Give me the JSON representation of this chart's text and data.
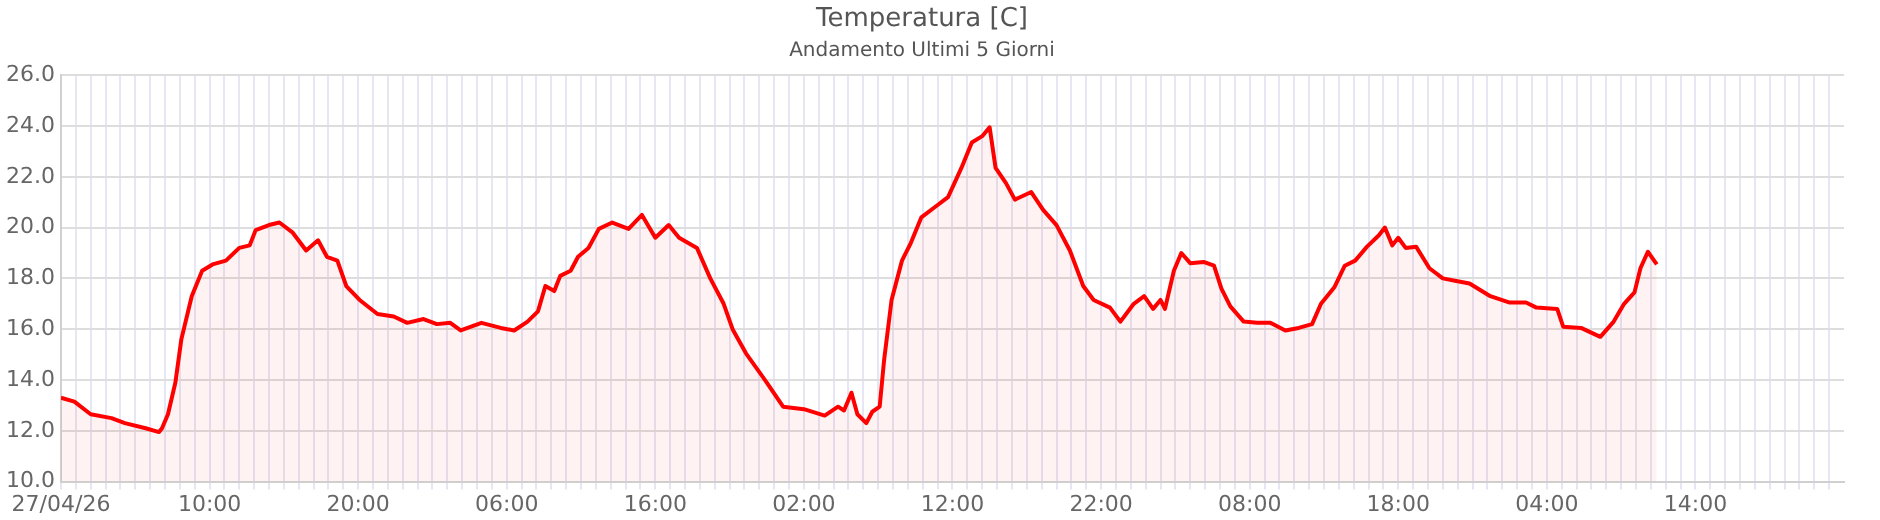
{
  "chart_data": {
    "type": "area",
    "title": "Temperatura [C]",
    "subtitle": "Andamento Ultimi 5 Giorni",
    "xlim": [
      "--04-27T00:00",
      "--05-02T00:00"
    ],
    "ylim": [
      10,
      26
    ],
    "yticks": [
      {
        "value": 10,
        "label": "10.0"
      },
      {
        "value": 12,
        "label": "12.0"
      },
      {
        "value": 14,
        "label": "14.0"
      },
      {
        "value": 16,
        "label": "16.0"
      },
      {
        "value": 18,
        "label": "18.0"
      },
      {
        "value": 20,
        "label": "20.0"
      },
      {
        "value": 22,
        "label": "22.0"
      },
      {
        "value": 24,
        "label": "24.0"
      },
      {
        "value": 26,
        "label": "26.0"
      }
    ],
    "xticks": [
      {
        "value": "--04-27T00:00",
        "label": "27/04/26"
      },
      {
        "value": "--04-27T01:00",
        "label": null
      },
      {
        "value": "--04-27T02:00",
        "label": null
      },
      {
        "value": "--04-27T03:00",
        "label": null
      },
      {
        "value": "--04-27T04:00",
        "label": null
      },
      {
        "value": "--04-27T05:00",
        "label": null
      },
      {
        "value": "--04-27T06:00",
        "label": null
      },
      {
        "value": "--04-27T07:00",
        "label": null
      },
      {
        "value": "--04-27T08:00",
        "label": null
      },
      {
        "value": "--04-27T09:00",
        "label": null
      },
      {
        "value": "--04-27T10:00",
        "label": "10:00"
      },
      {
        "value": "--04-27T11:00",
        "label": null
      },
      {
        "value": "--04-27T12:00",
        "label": null
      },
      {
        "value": "--04-27T13:00",
        "label": null
      },
      {
        "value": "--04-27T14:00",
        "label": null
      },
      {
        "value": "--04-27T15:00",
        "label": null
      },
      {
        "value": "--04-27T16:00",
        "label": null
      },
      {
        "value": "--04-27T17:00",
        "label": null
      },
      {
        "value": "--04-27T18:00",
        "label": null
      },
      {
        "value": "--04-27T19:00",
        "label": null
      },
      {
        "value": "--04-27T20:00",
        "label": "20:00"
      },
      {
        "value": "--04-27T21:00",
        "label": null
      },
      {
        "value": "--04-27T22:00",
        "label": null
      },
      {
        "value": "--04-27T23:00",
        "label": null
      },
      {
        "value": "--04-28T00:00",
        "label": null
      },
      {
        "value": "--04-28T01:00",
        "label": null
      },
      {
        "value": "--04-28T02:00",
        "label": null
      },
      {
        "value": "--04-28T03:00",
        "label": null
      },
      {
        "value": "--04-28T04:00",
        "label": null
      },
      {
        "value": "--04-28T05:00",
        "label": null
      },
      {
        "value": "--04-28T06:00",
        "label": "06:00"
      },
      {
        "value": "--04-28T07:00",
        "label": null
      },
      {
        "value": "--04-28T08:00",
        "label": null
      },
      {
        "value": "--04-28T09:00",
        "label": null
      },
      {
        "value": "--04-28T10:00",
        "label": null
      },
      {
        "value": "--04-28T11:00",
        "label": null
      },
      {
        "value": "--04-28T12:00",
        "label": null
      },
      {
        "value": "--04-28T13:00",
        "label": null
      },
      {
        "value": "--04-28T14:00",
        "label": null
      },
      {
        "value": "--04-28T15:00",
        "label": null
      },
      {
        "value": "--04-28T16:00",
        "label": "16:00"
      },
      {
        "value": "--04-28T17:00",
        "label": null
      },
      {
        "value": "--04-28T18:00",
        "label": null
      },
      {
        "value": "--04-28T19:00",
        "label": null
      },
      {
        "value": "--04-28T20:00",
        "label": null
      },
      {
        "value": "--04-28T21:00",
        "label": null
      },
      {
        "value": "--04-28T22:00",
        "label": null
      },
      {
        "value": "--04-28T23:00",
        "label": null
      },
      {
        "value": "--04-29T00:00",
        "label": null
      },
      {
        "value": "--04-29T01:00",
        "label": null
      },
      {
        "value": "--04-29T02:00",
        "label": "02:00"
      },
      {
        "value": "--04-29T03:00",
        "label": null
      },
      {
        "value": "--04-29T04:00",
        "label": null
      },
      {
        "value": "--04-29T05:00",
        "label": null
      },
      {
        "value": "--04-29T06:00",
        "label": null
      },
      {
        "value": "--04-29T07:00",
        "label": null
      },
      {
        "value": "--04-29T08:00",
        "label": null
      },
      {
        "value": "--04-29T09:00",
        "label": null
      },
      {
        "value": "--04-29T10:00",
        "label": null
      },
      {
        "value": "--04-29T11:00",
        "label": null
      },
      {
        "value": "--04-29T12:00",
        "label": "12:00"
      },
      {
        "value": "--04-29T13:00",
        "label": null
      },
      {
        "value": "--04-29T14:00",
        "label": null
      },
      {
        "value": "--04-29T15:00",
        "label": null
      },
      {
        "value": "--04-29T16:00",
        "label": null
      },
      {
        "value": "--04-29T17:00",
        "label": null
      },
      {
        "value": "--04-29T18:00",
        "label": null
      },
      {
        "value": "--04-29T19:00",
        "label": null
      },
      {
        "value": "--04-29T20:00",
        "label": null
      },
      {
        "value": "--04-29T21:00",
        "label": null
      },
      {
        "value": "--04-29T22:00",
        "label": "22:00"
      },
      {
        "value": "--04-29T23:00",
        "label": null
      },
      {
        "value": "--04-30T00:00",
        "label": null
      },
      {
        "value": "--04-30T01:00",
        "label": null
      },
      {
        "value": "--04-30T02:00",
        "label": null
      },
      {
        "value": "--04-30T03:00",
        "label": null
      },
      {
        "value": "--04-30T04:00",
        "label": null
      },
      {
        "value": "--04-30T05:00",
        "label": null
      },
      {
        "value": "--04-30T06:00",
        "label": null
      },
      {
        "value": "--04-30T07:00",
        "label": null
      },
      {
        "value": "--04-30T08:00",
        "label": "08:00"
      },
      {
        "value": "--04-30T09:00",
        "label": null
      },
      {
        "value": "--04-30T10:00",
        "label": null
      },
      {
        "value": "--04-30T11:00",
        "label": null
      },
      {
        "value": "--04-30T12:00",
        "label": null
      },
      {
        "value": "--04-30T13:00",
        "label": null
      },
      {
        "value": "--04-30T14:00",
        "label": null
      },
      {
        "value": "--04-30T15:00",
        "label": null
      },
      {
        "value": "--04-30T16:00",
        "label": null
      },
      {
        "value": "--04-30T17:00",
        "label": null
      },
      {
        "value": "--04-30T18:00",
        "label": "18:00"
      },
      {
        "value": "--04-30T19:00",
        "label": null
      },
      {
        "value": "--04-30T20:00",
        "label": null
      },
      {
        "value": "--04-30T21:00",
        "label": null
      },
      {
        "value": "--04-30T22:00",
        "label": null
      },
      {
        "value": "--04-30T23:00",
        "label": null
      },
      {
        "value": "--05-01T00:00",
        "label": null
      },
      {
        "value": "--05-01T01:00",
        "label": null
      },
      {
        "value": "--05-01T02:00",
        "label": null
      },
      {
        "value": "--05-01T03:00",
        "label": null
      },
      {
        "value": "--05-01T04:00",
        "label": "04:00"
      },
      {
        "value": "--05-01T05:00",
        "label": null
      },
      {
        "value": "--05-01T06:00",
        "label": null
      },
      {
        "value": "--05-01T07:00",
        "label": null
      },
      {
        "value": "--05-01T08:00",
        "label": null
      },
      {
        "value": "--05-01T09:00",
        "label": null
      },
      {
        "value": "--05-01T10:00",
        "label": null
      },
      {
        "value": "--05-01T11:00",
        "label": null
      },
      {
        "value": "--05-01T12:00",
        "label": null
      },
      {
        "value": "--05-01T13:00",
        "label": null
      },
      {
        "value": "--05-01T14:00",
        "label": "14:00"
      },
      {
        "value": "--05-01T15:00",
        "label": null
      },
      {
        "value": "--05-01T16:00",
        "label": null
      },
      {
        "value": "--05-01T17:00",
        "label": null
      },
      {
        "value": "--05-01T18:00",
        "label": null
      },
      {
        "value": "--05-01T19:00",
        "label": null
      },
      {
        "value": "--05-01T20:00",
        "label": null
      },
      {
        "value": "--05-01T21:00",
        "label": null
      },
      {
        "value": "--05-01T22:00",
        "label": null
      },
      {
        "value": "--05-01T23:00",
        "label": null
      }
    ],
    "grid": true,
    "x": [
      "--04-27T00:00",
      "--04-27T00:54",
      "--04-27T02:00",
      "--04-27T03:24",
      "--04-27T04:18",
      "--04-27T05:42",
      "--04-27T06:36",
      "--04-27T06:48",
      "--04-27T07:12",
      "--04-27T07:42",
      "--04-27T08:06",
      "--04-27T08:48",
      "--04-27T09:30",
      "--04-27T10:12",
      "--04-27T11:06",
      "--04-27T12:00",
      "--04-27T12:42",
      "--04-27T13:06",
      "--04-27T14:00",
      "--04-27T14:42",
      "--04-27T15:36",
      "--04-27T16:30",
      "--04-27T17:18",
      "--04-27T17:54",
      "--04-27T18:36",
      "--04-27T19:12",
      "--04-27T20:06",
      "--04-27T21:18",
      "--04-27T22:24",
      "--04-27T23:18",
      "--04-28T00:24",
      "--04-28T01:18",
      "--04-28T02:12",
      "--04-28T02:54",
      "--04-28T04:18",
      "--04-28T05:36",
      "--04-28T06:30",
      "--04-28T07:24",
      "--04-28T08:06",
      "--04-28T08:36",
      "--04-28T09:12",
      "--04-28T09:36",
      "--04-28T10:18",
      "--04-28T10:48",
      "--04-28T11:30",
      "--04-28T12:12",
      "--04-28T13:06",
      "--04-28T14:12",
      "--04-28T15:06",
      "--04-28T16:00",
      "--04-28T16:54",
      "--04-28T17:36",
      "--04-28T18:48",
      "--04-28T19:42",
      "--04-28T20:36",
      "--04-28T21:12",
      "--04-28T22:06",
      "--04-28T23:30",
      "--04-29T00:36",
      "--04-29T02:00",
      "--04-29T03:24",
      "--04-29T04:18",
      "--04-29T04:42",
      "--04-29T05:12",
      "--04-29T05:36",
      "--04-29T06:12",
      "--04-29T06:36",
      "--04-29T07:06",
      "--04-29T07:24",
      "--04-29T07:54",
      "--04-29T08:36",
      "--04-29T09:12",
      "--04-29T09:54",
      "--04-29T10:48",
      "--04-29T11:42",
      "--04-29T12:36",
      "--04-29T13:18",
      "--04-29T14:00",
      "--04-29T14:30",
      "--04-29T14:54",
      "--04-29T15:36",
      "--04-29T16:12",
      "--04-29T17:18",
      "--04-29T18:06",
      "--04-29T19:00",
      "--04-29T19:54",
      "--04-29T20:48",
      "--04-29T21:30",
      "--04-29T22:36",
      "--04-29T23:18",
      "--04-30T00:12",
      "--04-30T00:54",
      "--04-30T01:30",
      "--04-30T02:00",
      "--04-30T02:18",
      "--04-30T02:54",
      "--04-30T03:24",
      "--04-30T04:00",
      "--04-30T04:54",
      "--04-30T05:36",
      "--04-30T06:06",
      "--04-30T06:42",
      "--04-30T07:36",
      "--04-30T08:30",
      "--04-30T09:24",
      "--04-30T10:24",
      "--04-30T11:18",
      "--04-30T12:12",
      "--04-30T12:48",
      "--04-30T13:42",
      "--04-30T14:24",
      "--04-30T15:06",
      "--04-30T15:54",
      "--04-30T16:42",
      "--04-30T17:06",
      "--04-30T17:36",
      "--04-30T18:00",
      "--04-30T18:30",
      "--04-30T19:12",
      "--04-30T20:06",
      "--04-30T21:00",
      "--04-30T21:54",
      "--04-30T22:48",
      "--05-01T00:12",
      "--05-01T01:30",
      "--05-01T02:36",
      "--05-01T03:18",
      "--05-01T04:42",
      "--05-01T05:06",
      "--05-01T06:18",
      "--05-01T07:36",
      "--05-01T08:30",
      "--05-01T09:12",
      "--05-01T09:54",
      "--05-01T10:18",
      "--05-01T10:48",
      "--05-01T11:24"
    ],
    "series": [
      {
        "color": "#ff0000",
        "values": [
          13.3,
          13.15,
          12.65,
          12.5,
          12.3,
          12.1,
          11.95,
          12.1,
          12.65,
          13.9,
          15.6,
          17.3,
          18.3,
          18.55,
          18.7,
          19.2,
          19.3,
          19.9,
          20.1,
          20.2,
          19.8,
          19.1,
          19.5,
          18.85,
          18.7,
          17.7,
          17.15,
          16.6,
          16.5,
          16.25,
          16.4,
          16.2,
          16.25,
          15.95,
          16.25,
          16.05,
          15.95,
          16.3,
          16.7,
          17.7,
          17.5,
          18.1,
          18.3,
          18.85,
          19.2,
          19.95,
          20.2,
          19.95,
          20.5,
          19.6,
          20.1,
          19.6,
          19.2,
          18.0,
          17.0,
          16.0,
          15.05,
          13.9,
          12.95,
          12.85,
          12.6,
          12.95,
          12.8,
          13.5,
          12.65,
          12.3,
          12.75,
          12.95,
          14.8,
          17.15,
          18.7,
          19.4,
          20.4,
          20.8,
          21.2,
          22.35,
          23.35,
          23.6,
          23.95,
          22.35,
          21.75,
          21.1,
          21.4,
          20.7,
          20.1,
          19.1,
          17.7,
          17.15,
          16.85,
          16.3,
          17.0,
          17.3,
          16.8,
          17.15,
          16.8,
          18.3,
          19.0,
          18.6,
          18.65,
          18.5,
          17.6,
          16.9,
          16.3,
          16.25,
          16.25,
          15.95,
          16.05,
          16.2,
          17.0,
          17.65,
          18.5,
          18.7,
          19.25,
          19.7,
          20.0,
          19.3,
          19.6,
          19.2,
          19.25,
          18.4,
          18.0,
          17.9,
          17.8,
          17.3,
          17.05,
          17.05,
          16.85,
          16.8,
          16.1,
          16.05,
          15.7,
          16.3,
          17.0,
          17.45,
          18.4,
          19.05,
          18.55
        ]
      }
    ]
  }
}
